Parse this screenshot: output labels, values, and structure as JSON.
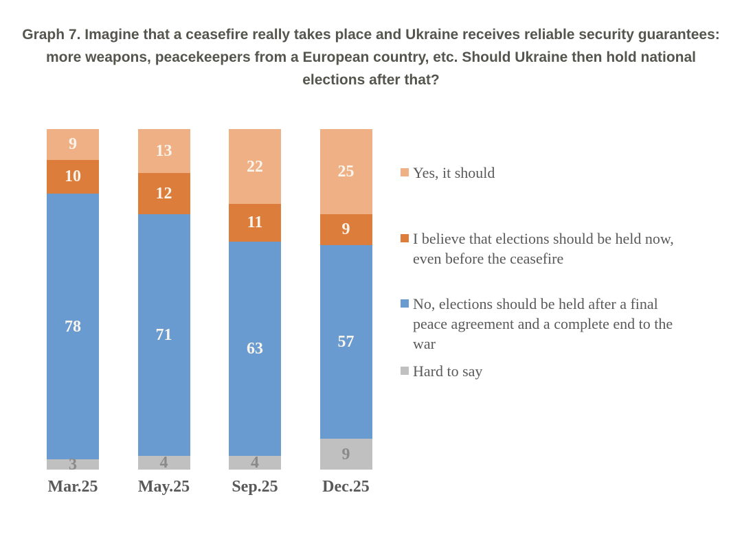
{
  "title": "Graph 7. Imagine that a ceasefire really takes place and Ukraine receives reliable security guarantees: more weapons, peacekeepers from a European country, etc. Should Ukraine then hold national elections after that?",
  "chart_data": {
    "type": "bar",
    "subtype": "stacked-column-100",
    "unit": "percent",
    "title": "Graph 7. Imagine that a ceasefire really takes place and Ukraine receives reliable security guarantees: more weapons, peacekeepers from a European country, etc. Should Ukraine then hold national elections after that?",
    "categories": [
      "Mar.25",
      "May.25",
      "Sep.25",
      "Dec.25"
    ],
    "series": [
      {
        "name": "Yes, it should",
        "color": "#EFB086",
        "label_color": "#FAF5EC",
        "values": [
          9,
          13,
          22,
          25
        ]
      },
      {
        "name": "I believe that elections should be held now, even before the ceasefire",
        "color": "#DD7D3B",
        "label_color": "#FAF5EC",
        "values": [
          10,
          12,
          11,
          9
        ]
      },
      {
        "name": "No, elections should be held after a final peace agreement and a complete end to the war",
        "color": "#699BD1",
        "label_color": "#FAF5EC",
        "values": [
          78,
          71,
          63,
          57
        ]
      },
      {
        "name": "Hard to say",
        "color": "#C0C0C0",
        "label_color": "#8A8A8A",
        "values": [
          3,
          4,
          4,
          9
        ]
      }
    ],
    "ylim": [
      0,
      100
    ],
    "grid": false,
    "value_labels": true,
    "legend_position": "right"
  },
  "legend": {
    "items": [
      {
        "label": "Yes, it should",
        "color": "#EFB086"
      },
      {
        "label": "I believe that elections should be held now,\neven before the ceasefire",
        "color": "#DD7D3B"
      },
      {
        "label": "No, elections should be held after a final\npeace agreement and a complete end to the\nwar",
        "color": "#699BD1"
      },
      {
        "label": "Hard to say",
        "color": "#C0C0C0"
      }
    ]
  }
}
